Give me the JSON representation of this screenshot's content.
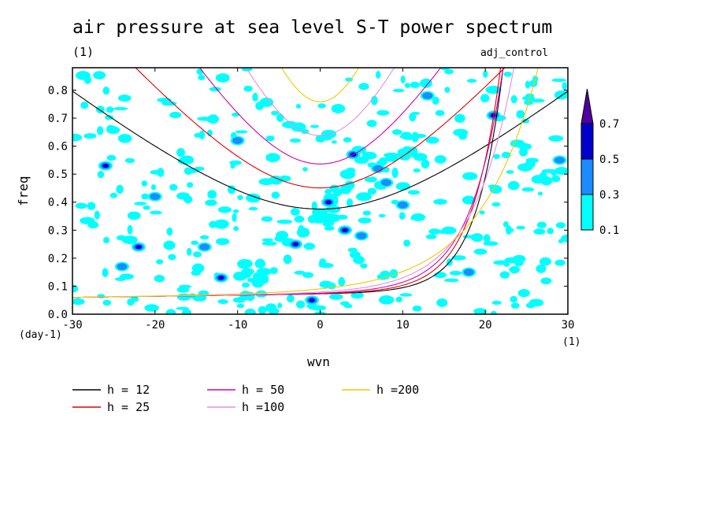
{
  "title": "air pressure at sea level S-T power spectrum",
  "units_label": "(1)",
  "experiment": "adj_control",
  "chart_data": {
    "type": "heatmap",
    "xlabel": "wvn",
    "ylabel": "freq",
    "y_units": "(day-1)",
    "x_units": "(1)",
    "xlim": [
      -30,
      30
    ],
    "ylim": [
      0,
      0.88
    ],
    "x_ticks": [
      "-30",
      "-20",
      "-10",
      "0",
      "10",
      "20",
      "30"
    ],
    "y_ticks": [
      "0.0",
      "0.1",
      "0.2",
      "0.3",
      "0.4",
      "0.5",
      "0.6",
      "0.7",
      "0.8"
    ],
    "colorbar": {
      "levels": [
        "0.1",
        "0.3",
        "0.5",
        "0.7"
      ],
      "colors": [
        "#00ffff",
        "#1a8cff",
        "#0000cc",
        "#5000a0"
      ]
    },
    "spectral_patches": [
      {
        "x": 4,
        "y": 0.57,
        "level": 3
      },
      {
        "x": -1,
        "y": 0.05,
        "level": 3
      },
      {
        "x": 1,
        "y": 0.4,
        "level": 3
      },
      {
        "x": -22,
        "y": 0.24,
        "level": 2
      },
      {
        "x": -3,
        "y": 0.25,
        "level": 2
      },
      {
        "x": -12,
        "y": 0.13,
        "level": 2
      },
      {
        "x": 3,
        "y": 0.3,
        "level": 2
      },
      {
        "x": 21,
        "y": 0.71,
        "level": 2
      },
      {
        "x": -26,
        "y": 0.53,
        "level": 2
      },
      {
        "x": 5,
        "y": 0.28,
        "level": 1
      },
      {
        "x": 8,
        "y": 0.47,
        "level": 1
      },
      {
        "x": -20,
        "y": 0.42,
        "level": 1
      },
      {
        "x": 10,
        "y": 0.39,
        "level": 1
      },
      {
        "x": -14,
        "y": 0.24,
        "level": 1
      },
      {
        "x": 7,
        "y": 0.52,
        "level": 1
      },
      {
        "x": 29,
        "y": 0.55,
        "level": 1
      },
      {
        "x": -24,
        "y": 0.17,
        "level": 1
      },
      {
        "x": 13,
        "y": 0.78,
        "level": 1
      },
      {
        "x": -10,
        "y": 0.62,
        "level": 1
      },
      {
        "x": 18,
        "y": 0.15,
        "level": 1
      }
    ],
    "series": [
      {
        "name": "h = 12",
        "h": 12,
        "color": "#000000"
      },
      {
        "name": "h = 25",
        "h": 25,
        "color": "#e00000"
      },
      {
        "name": "h = 50",
        "h": 50,
        "color": "#d000b0"
      },
      {
        "name": "h =100",
        "h": 100,
        "color": "#e090e0"
      },
      {
        "name": "h =200",
        "h": 200,
        "color": "#f0c800"
      }
    ]
  }
}
